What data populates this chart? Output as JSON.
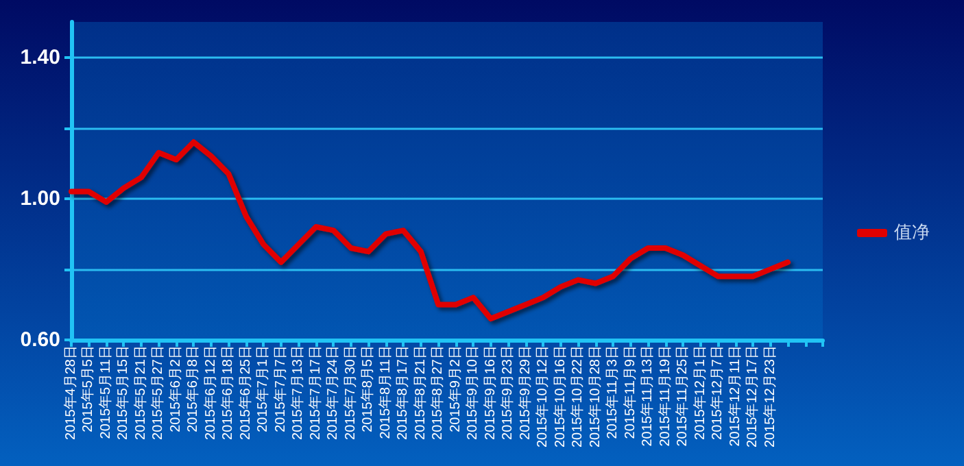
{
  "chart_data": {
    "type": "line",
    "categories": [
      "2015年4月28日",
      "2015年5月5日",
      "2015年5月11日",
      "2015年5月15日",
      "2015年5月21日",
      "2015年5月27日",
      "2015年6月2日",
      "2015年6月8日",
      "2015年6月12日",
      "2015年6月18日",
      "2015年6月25日",
      "2015年7月1日",
      "2015年7月7日",
      "2015年7月13日",
      "2015年7月17日",
      "2015年7月24日",
      "2015年7月30日",
      "2015年8月5日",
      "2015年8月11日",
      "2015年8月17日",
      "2015年8月21日",
      "2015年8月27日",
      "2015年9月2日",
      "2015年9月10日",
      "2015年9月16日",
      "2015年9月23日",
      "2015年9月29日",
      "2015年10月12日",
      "2015年10月16日",
      "2015年10月22日",
      "2015年10月28日",
      "2015年11月3日",
      "2015年11月9日",
      "2015年11月13日",
      "2015年11月19日",
      "2015年11月25日",
      "2015年12月1日",
      "2015年12月7日",
      "2015年12月11日",
      "2015年12月17日",
      "2015年12月23日",
      null,
      null,
      null
    ],
    "series": [
      {
        "name": "值净",
        "color": "#e00000",
        "values": [
          1.02,
          1.02,
          0.99,
          1.03,
          1.06,
          1.13,
          1.11,
          1.16,
          1.12,
          1.07,
          0.95,
          0.87,
          0.82,
          0.87,
          0.92,
          0.91,
          0.86,
          0.85,
          0.9,
          0.91,
          0.85,
          0.7,
          0.7,
          0.72,
          0.66,
          0.68,
          0.7,
          0.72,
          0.75,
          0.77,
          0.76,
          0.78,
          0.83,
          0.86,
          0.86,
          0.84,
          0.81,
          0.78,
          0.78,
          0.78,
          0.8,
          0.82,
          null,
          null
        ]
      }
    ],
    "ylim": [
      0.6,
      1.5
    ],
    "yticks": [
      {
        "value": 0.6,
        "label": "0.60"
      },
      {
        "value": 0.8,
        "label": null
      },
      {
        "value": 1.0,
        "label": "1.00"
      },
      {
        "value": 1.2,
        "label": null
      },
      {
        "value": 1.4,
        "label": "1.40"
      }
    ],
    "grid": "y",
    "legend": "right",
    "marker": "none",
    "line_style": "solid"
  }
}
